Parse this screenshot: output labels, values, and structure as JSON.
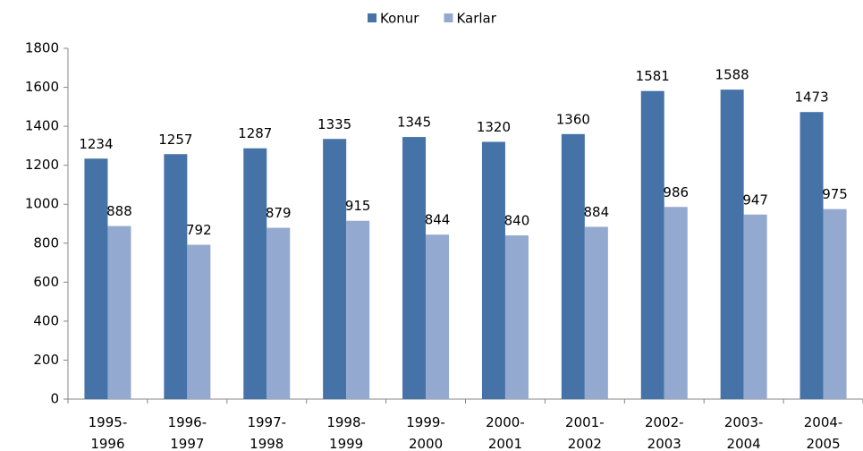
{
  "chart_data": {
    "type": "bar",
    "categories": [
      "1995-1996",
      "1996-1997",
      "1997-1998",
      "1998-1999",
      "1999-2000",
      "2000-2001",
      "2001-2002",
      "2002-2003",
      "2003-2004",
      "2004-2005"
    ],
    "series": [
      {
        "name": "Konur",
        "color": "#4572a7",
        "values": [
          1234,
          1257,
          1287,
          1335,
          1345,
          1320,
          1360,
          1581,
          1588,
          1473
        ]
      },
      {
        "name": "Karlar",
        "color": "#93a9cf",
        "values": [
          888,
          792,
          879,
          915,
          844,
          840,
          884,
          986,
          947,
          975
        ]
      }
    ],
    "ylim": [
      0,
      1800
    ],
    "yticks": [
      0,
      200,
      400,
      600,
      800,
      1000,
      1200,
      1400,
      1600,
      1800
    ],
    "grid": false,
    "legend": "top",
    "data_labels": true
  }
}
